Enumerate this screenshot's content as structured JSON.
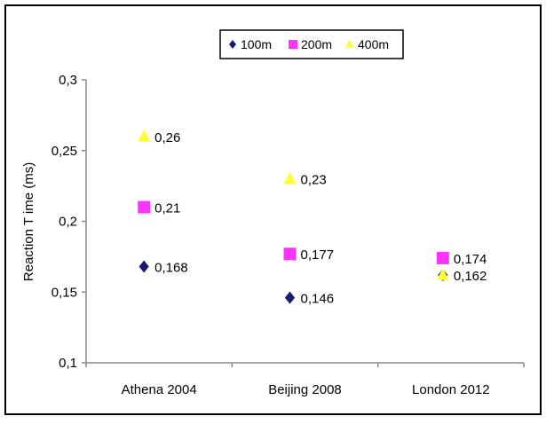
{
  "chart_data": {
    "type": "scatter",
    "title": "",
    "xlabel": "",
    "ylabel": "Reaction T ime (ms)",
    "categories": [
      "Athena 2004",
      "Beijing 2008",
      "London 2012"
    ],
    "ylim": [
      0.1,
      0.3
    ],
    "yticks": [
      0.1,
      0.15,
      0.2,
      0.25,
      0.3
    ],
    "ytick_labels": [
      "0,1",
      "0,15",
      "0,2",
      "0,25",
      "0,3"
    ],
    "grid": false,
    "legend_position": "top-center",
    "series": [
      {
        "name": "100m",
        "marker": "diamond",
        "color": "#1a1a6e",
        "values": [
          0.168,
          0.146,
          0.162
        ],
        "labels": [
          "0,168",
          "0,146",
          "0,162"
        ]
      },
      {
        "name": "200m",
        "marker": "square",
        "color": "#ff33ff",
        "values": [
          0.21,
          0.177,
          0.174
        ],
        "labels": [
          "0,21",
          "0,177",
          "0,174"
        ]
      },
      {
        "name": "400m",
        "marker": "triangle",
        "color": "#ffff33",
        "values": [
          0.26,
          0.23,
          0.162
        ],
        "labels": [
          "0,26",
          "0,23",
          ""
        ]
      }
    ]
  }
}
